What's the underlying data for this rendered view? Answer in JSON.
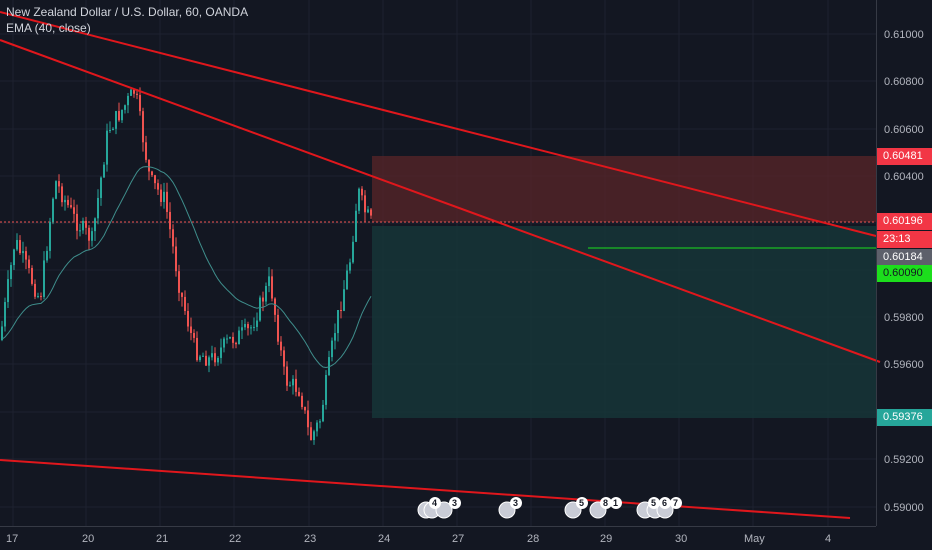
{
  "legend": {
    "title": "New Zealand Dollar / U.S. Dollar, 60, OANDA",
    "indicator": "EMA (40, close)"
  },
  "price_axis": {
    "ticks": [
      "0.61000",
      "0.60800",
      "0.60600",
      "0.60400",
      "0.59800",
      "0.59600",
      "0.59200",
      "0.59000"
    ],
    "tags": {
      "stop": "0.60481",
      "last": "0.60196",
      "countdown": "23:13",
      "bid": "0.60184",
      "ask": "0.60090",
      "target": "0.59376"
    }
  },
  "time_axis": {
    "labels": [
      "17",
      "20",
      "21",
      "22",
      "23",
      "24",
      "27",
      "28",
      "29",
      "30",
      "May",
      "4"
    ]
  },
  "events": {
    "group1": [
      "4",
      "3"
    ],
    "group2": [
      "3"
    ],
    "group3": [
      "5"
    ],
    "group4": [
      "8",
      "1"
    ],
    "group5": [
      "5",
      "6",
      "7"
    ]
  },
  "colors": {
    "background": "#131722",
    "up": "#26a69a",
    "down": "#ef5350",
    "trendline": "#e0171c",
    "stop_zone": "#5a2528",
    "target_zone": "#163537",
    "green_tag": "#1cde1c",
    "ema": "#3f8e8c"
  },
  "icons": {
    "event_flag": "us-flag-icon"
  }
}
